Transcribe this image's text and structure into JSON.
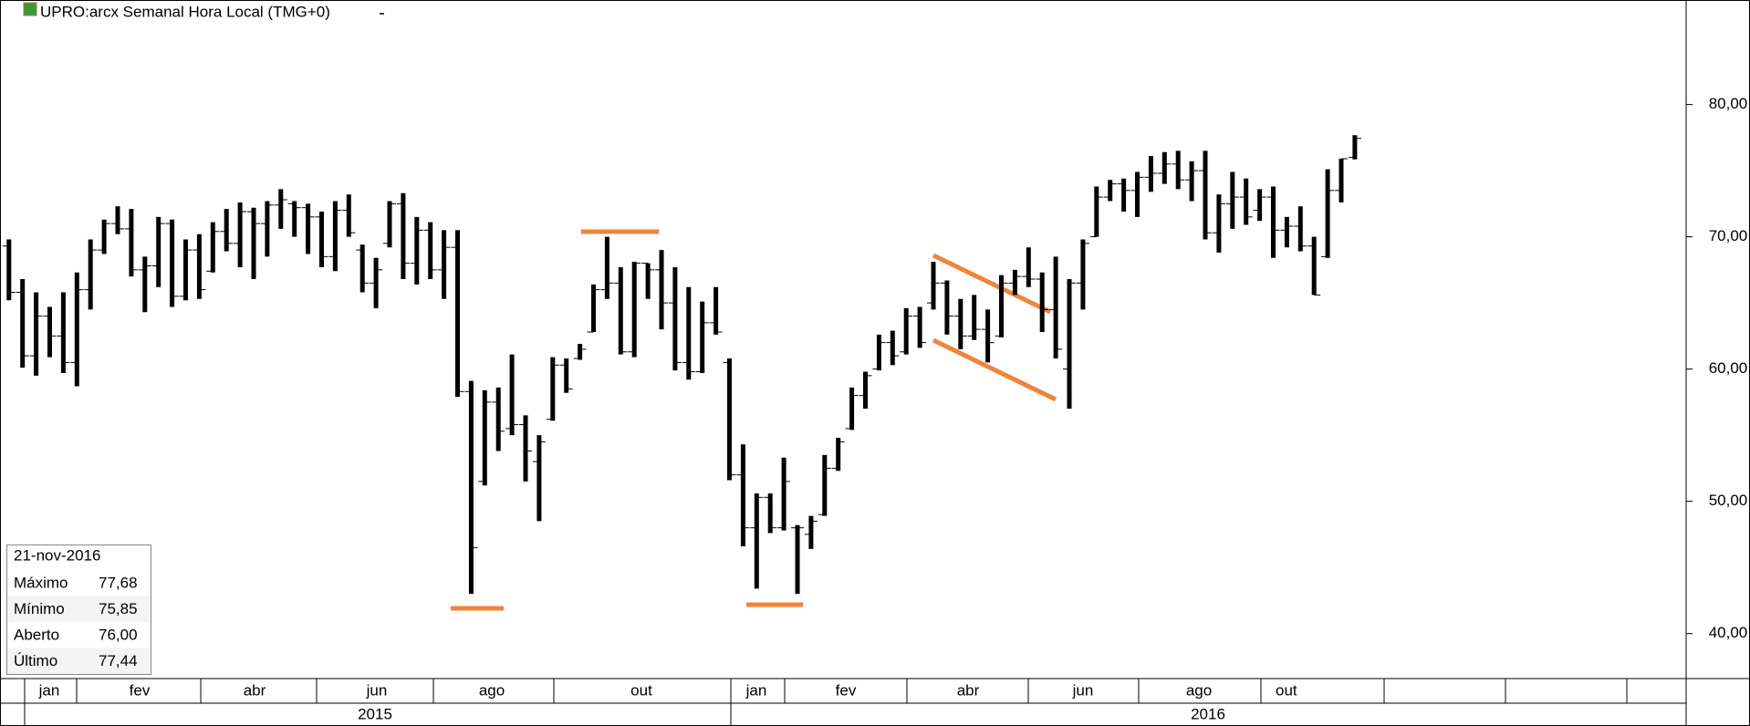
{
  "chart_data": {
    "type": "ohlc",
    "title": "UPRO:arcx Semanal Hora Local (TMG+0)",
    "color": "#000000",
    "open": [
      69.3,
      65.8,
      61.0,
      64.0,
      62.5,
      60.5,
      66.0,
      69.0,
      71.0,
      70.6,
      67.5,
      67.8,
      71.0,
      65.5,
      69.0,
      67.4,
      70.4,
      69.5,
      71.9,
      71.0,
      72.4,
      72.5,
      72.2,
      71.5,
      68.5,
      72.0,
      69.0,
      66.5,
      69.5,
      72.5,
      68.0,
      70.5,
      67.5,
      69.2,
      58.3,
      51.5,
      57.5,
      55.5,
      55.8,
      53.0,
      56.2,
      60.3,
      60.8,
      62.8,
      66.0,
      66.5,
      61.3,
      68.0,
      67.5,
      65.0,
      60.5,
      59.8,
      63.5,
      60.5,
      52.0,
      48.0,
      50.3,
      48.0,
      48.0,
      47.5,
      49.0,
      52.5,
      55.5,
      58.0,
      60.0,
      62.0,
      61.3,
      64.0,
      65.0,
      66.5,
      64.0,
      62.5,
      63.0,
      62.5,
      66.5,
      67.0,
      66.8,
      64.5,
      60.0,
      66.5,
      70.0,
      73.0,
      74.0,
      73.5,
      74.5,
      74.8,
      75.5,
      74.3,
      75.0,
      70.3,
      72.5,
      73.0,
      72.0,
      73.0,
      70.5,
      70.8,
      69.3,
      68.5,
      73.5,
      76.0
    ],
    "high": [
      69.8,
      66.8,
      65.8,
      64.7,
      65.8,
      67.3,
      69.8,
      71.3,
      72.3,
      72.1,
      68.5,
      71.5,
      71.3,
      69.8,
      70.2,
      71.1,
      72.1,
      72.6,
      72.2,
      72.7,
      73.6,
      72.7,
      72.5,
      71.9,
      72.7,
      73.2,
      69.4,
      68.4,
      72.7,
      73.3,
      71.5,
      71.1,
      70.5,
      70.5,
      59.1,
      58.4,
      58.6,
      61.1,
      56.5,
      55.0,
      60.9,
      60.8,
      61.9,
      66.4,
      70.0,
      67.7,
      68.1,
      68.0,
      69.0,
      67.7,
      66.2,
      65.1,
      66.2,
      60.8,
      54.3,
      50.6,
      50.6,
      53.3,
      48.2,
      48.9,
      53.5,
      54.8,
      58.6,
      59.8,
      62.6,
      62.9,
      64.6,
      64.7,
      68.1,
      66.7,
      65.3,
      65.6,
      64.5,
      67.1,
      67.5,
      69.2,
      67.3,
      68.5,
      66.8,
      69.8,
      73.8,
      74.3,
      74.4,
      74.9,
      76.1,
      76.4,
      76.5,
      75.7,
      76.5,
      73.2,
      74.9,
      74.4,
      73.6,
      73.8,
      71.5,
      72.3,
      70.0,
      75.1,
      75.9,
      77.68
    ],
    "low": [
      65.2,
      60.1,
      59.5,
      60.9,
      59.7,
      58.7,
      64.5,
      68.7,
      70.2,
      67.0,
      64.3,
      66.2,
      64.7,
      65.2,
      65.3,
      67.3,
      68.9,
      67.7,
      66.8,
      68.5,
      70.6,
      70.0,
      68.7,
      67.7,
      67.4,
      70.0,
      65.8,
      64.6,
      69.2,
      66.8,
      66.4,
      66.8,
      65.3,
      57.9,
      43.0,
      51.2,
      53.8,
      55.0,
      51.5,
      48.5,
      56.1,
      58.2,
      60.7,
      62.8,
      65.3,
      61.1,
      60.9,
      65.3,
      63.0,
      59.9,
      59.2,
      59.7,
      62.6,
      51.6,
      46.6,
      43.4,
      47.6,
      47.8,
      43.0,
      46.4,
      48.9,
      52.3,
      55.4,
      57.0,
      59.9,
      60.3,
      61.1,
      61.6,
      64.5,
      62.6,
      61.5,
      62.2,
      60.5,
      62.4,
      65.6,
      66.2,
      62.8,
      60.8,
      57.0,
      64.5,
      70.0,
      72.7,
      71.9,
      71.5,
      73.4,
      74.0,
      73.6,
      72.7,
      69.8,
      68.8,
      70.6,
      70.9,
      71.2,
      68.4,
      69.2,
      68.9,
      65.6,
      68.4,
      72.6,
      75.85
    ],
    "close": [
      65.8,
      61.0,
      64.0,
      62.5,
      60.5,
      66.0,
      69.0,
      71.0,
      70.6,
      67.5,
      67.8,
      71.0,
      65.5,
      69.0,
      66.0,
      70.4,
      69.5,
      71.9,
      71.0,
      72.4,
      72.8,
      72.2,
      71.5,
      68.5,
      72.0,
      70.3,
      66.5,
      67.5,
      72.5,
      68.0,
      70.5,
      67.5,
      69.2,
      58.3,
      46.5,
      57.5,
      55.3,
      55.8,
      53.8,
      54.5,
      60.3,
      58.5,
      61.5,
      66.0,
      66.5,
      61.3,
      68.0,
      67.5,
      65.0,
      60.5,
      59.8,
      63.5,
      62.8,
      52.0,
      48.0,
      50.3,
      48.0,
      51.5,
      48.0,
      48.5,
      52.5,
      54.5,
      58.0,
      59.5,
      62.0,
      61.0,
      64.0,
      62.0,
      66.5,
      64.0,
      62.5,
      63.0,
      62.0,
      66.5,
      67.0,
      66.8,
      64.5,
      61.5,
      66.5,
      69.5,
      73.0,
      74.0,
      73.5,
      74.5,
      74.8,
      75.5,
      74.3,
      75.0,
      70.3,
      72.5,
      73.0,
      71.5,
      73.0,
      70.5,
      70.8,
      69.3,
      65.6,
      73.5,
      75.9,
      77.44
    ],
    "ylim": [
      36.6,
      87.9
    ],
    "yticks": [
      {
        "value": 40,
        "label": "40,00"
      },
      {
        "value": 50,
        "label": "50,00"
      },
      {
        "value": 60,
        "label": "60,00"
      },
      {
        "value": 70,
        "label": "70,00"
      },
      {
        "value": 80,
        "label": "80,00"
      }
    ],
    "months": [
      "jan",
      "fev",
      "abr",
      "jun",
      "ago",
      "out",
      "jan",
      "fev",
      "abr",
      "jun",
      "ago",
      "out"
    ],
    "years": [
      "2015",
      "2016"
    ],
    "grid": false
  },
  "info_box": {
    "date": "21-nov-2016",
    "rows": [
      {
        "label": "Máximo",
        "value": "77,68"
      },
      {
        "label": "Mínimo",
        "value": "75,85"
      },
      {
        "label": "Aberto",
        "value": "76,00"
      },
      {
        "label": "Último",
        "value": "77,44"
      }
    ]
  }
}
